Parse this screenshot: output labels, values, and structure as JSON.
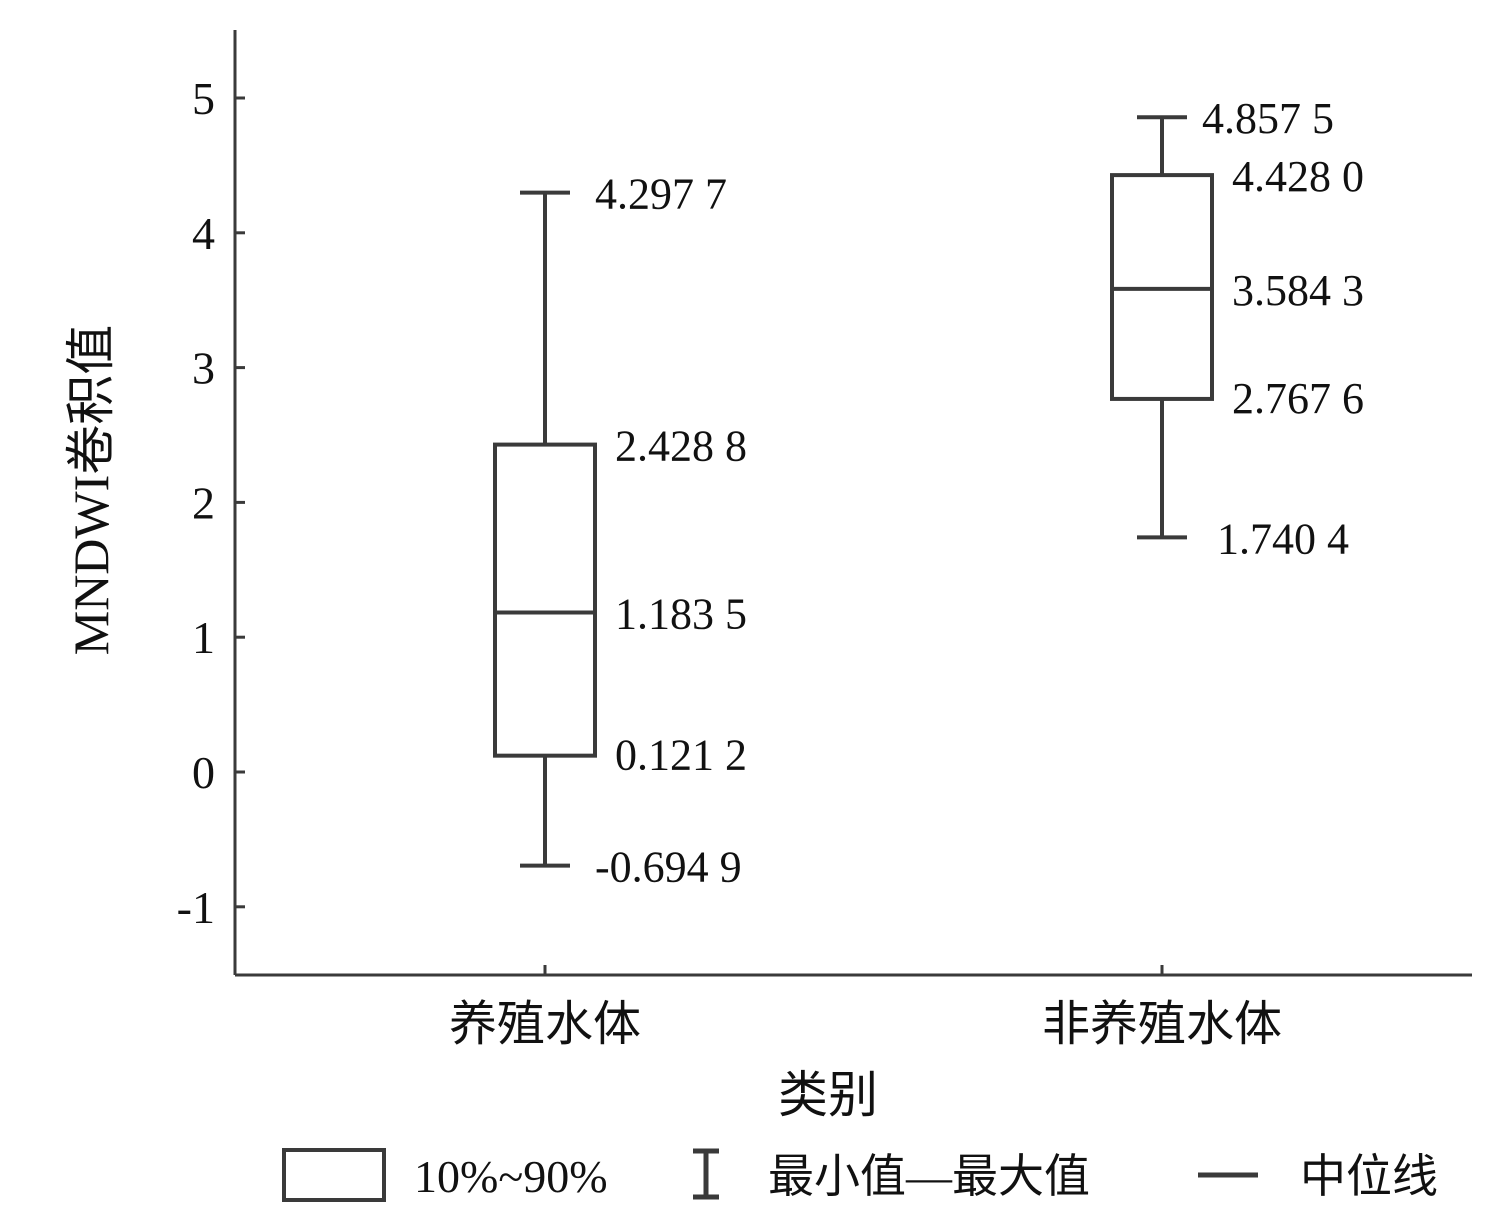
{
  "chart_data": {
    "type": "box",
    "xlabel": "类别",
    "ylabel": "MNDWI卷积值",
    "ylim": [
      -1.5,
      5.5
    ],
    "yticks": [
      -1,
      0,
      1,
      2,
      3,
      4,
      5
    ],
    "grid": false,
    "categories": [
      "养殖水体",
      "非养殖水体"
    ],
    "boxes": [
      {
        "category": "养殖水体",
        "min": -0.6949,
        "q10": 0.1212,
        "median": 1.1835,
        "q90": 2.4288,
        "max": 4.2977,
        "labels": {
          "min": "-0.694 9",
          "q10": "0.121 2",
          "median": "1.183 5",
          "q90": "2.428 8",
          "max": "4.297 7"
        }
      },
      {
        "category": "非养殖水体",
        "min": 1.7404,
        "q10": 2.7676,
        "median": 3.5843,
        "q90": 4.428,
        "max": 4.8575,
        "labels": {
          "min": "1.740 4",
          "q10": "2.767 6",
          "median": "3.584 3",
          "q90": "4.428 0",
          "max": "4.857 5"
        }
      }
    ],
    "legend": {
      "placement": "bottom",
      "items": [
        {
          "symbol": "box",
          "label": "10%~90%"
        },
        {
          "symbol": "whisker",
          "label": "最小值—最大值"
        },
        {
          "symbol": "median-line",
          "label": "中位线"
        }
      ]
    },
    "colors": {
      "line": "#3a3a3a",
      "text": "#111111"
    }
  }
}
